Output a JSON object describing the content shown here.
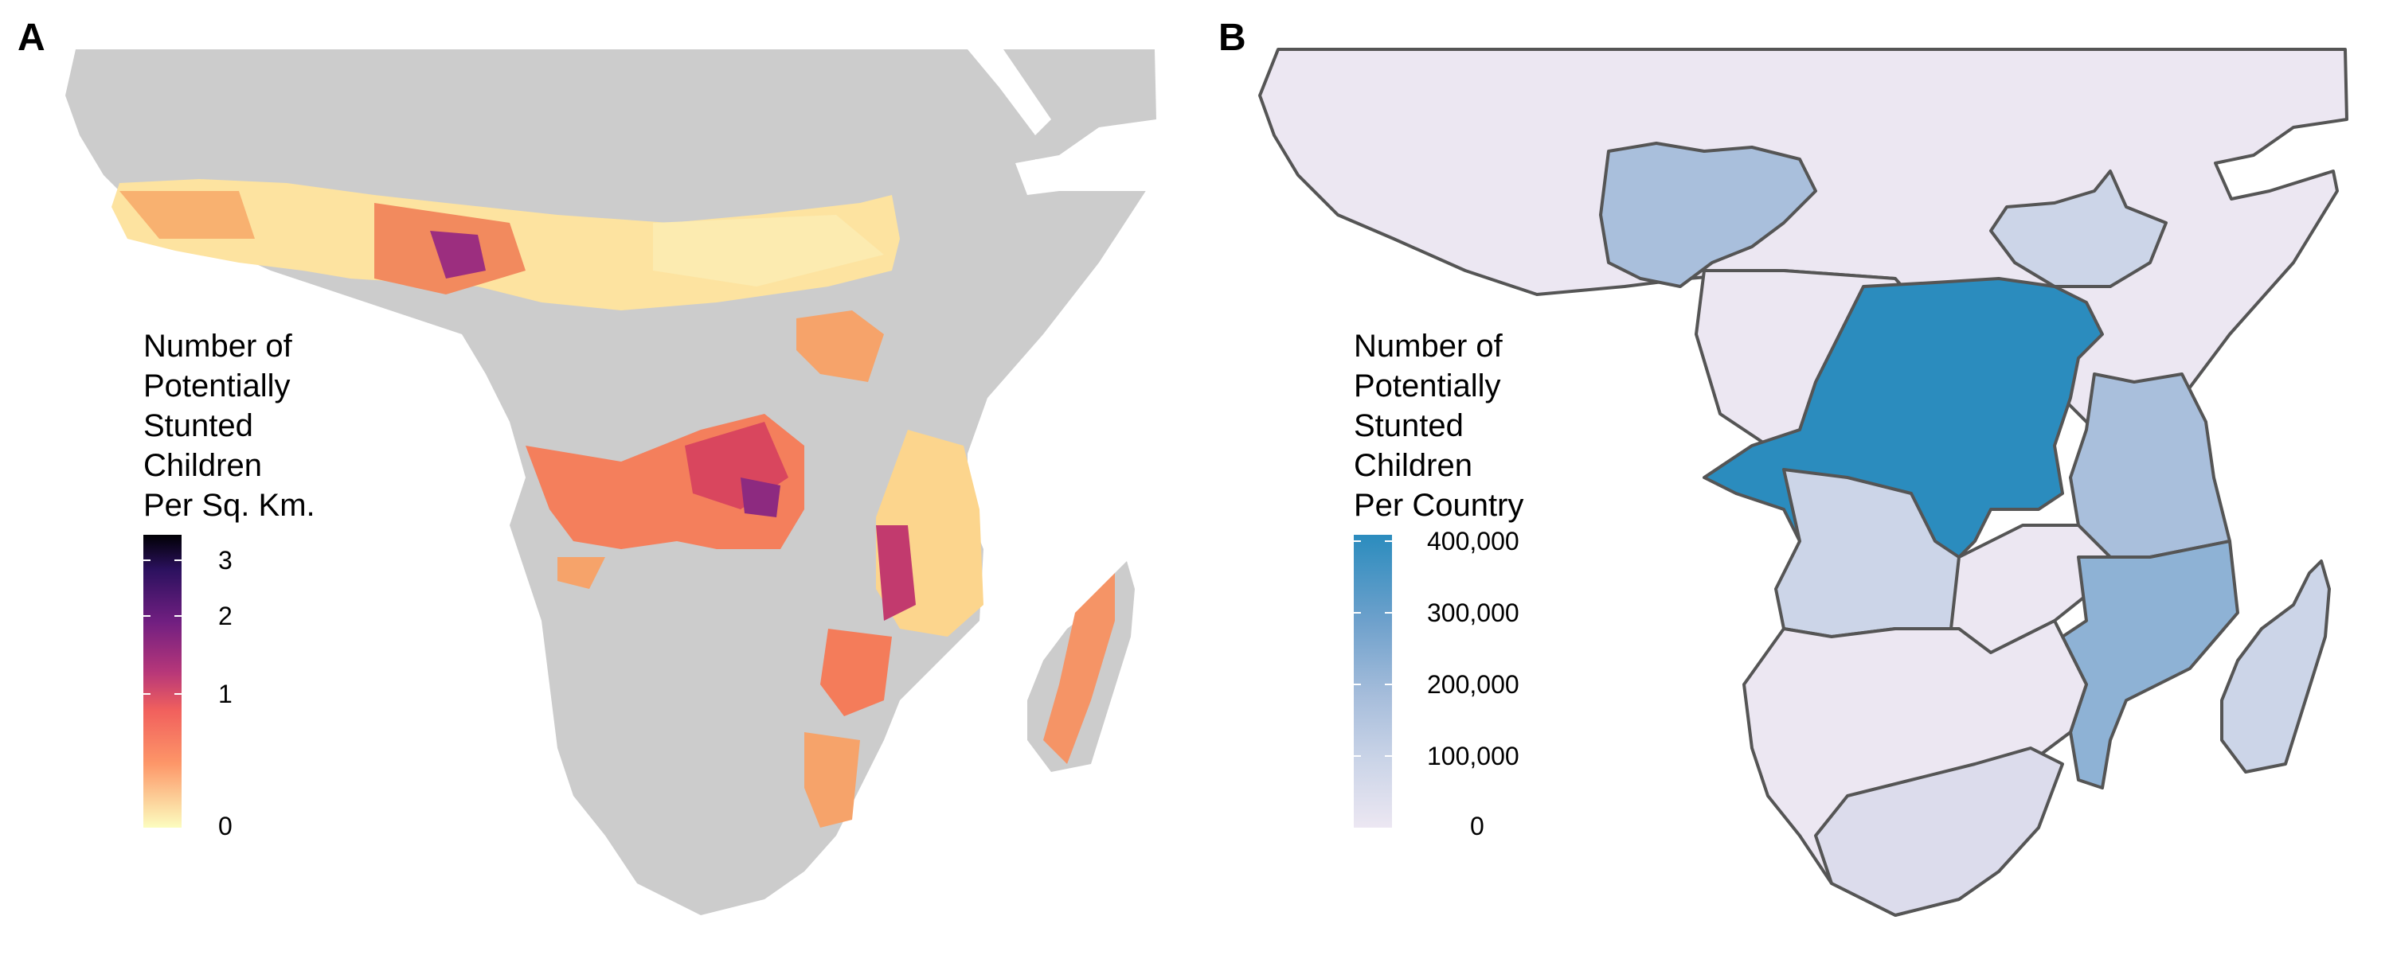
{
  "panels": [
    {
      "letter": "A",
      "legend": {
        "title": "Number of\nPotentially\nStunted\nChildren\nPer Sq. Km.",
        "ticks": [
          "3",
          "2",
          "1",
          "0"
        ],
        "colors": [
          "#000004",
          "#2c115f",
          "#721f81",
          "#b73779",
          "#f1605d",
          "#fd9668",
          "#fcfdbf"
        ]
      },
      "colors": {
        "land": "#cccccc",
        "low": "#fde9a9",
        "high": "#2c115f"
      }
    },
    {
      "letter": "B",
      "legend": {
        "title": "Number of\nPotentially\nStunted\nChildren\nPer Country",
        "ticks": [
          "400,000",
          "300,000",
          "200,000",
          "100,000",
          "0"
        ],
        "colors": [
          "#2b8cbe",
          "#a6bddb",
          "#ece7f2"
        ]
      },
      "colors": {
        "low": "#ece7f2",
        "border": "#555555",
        "high": "#2b8cbe"
      }
    }
  ]
}
